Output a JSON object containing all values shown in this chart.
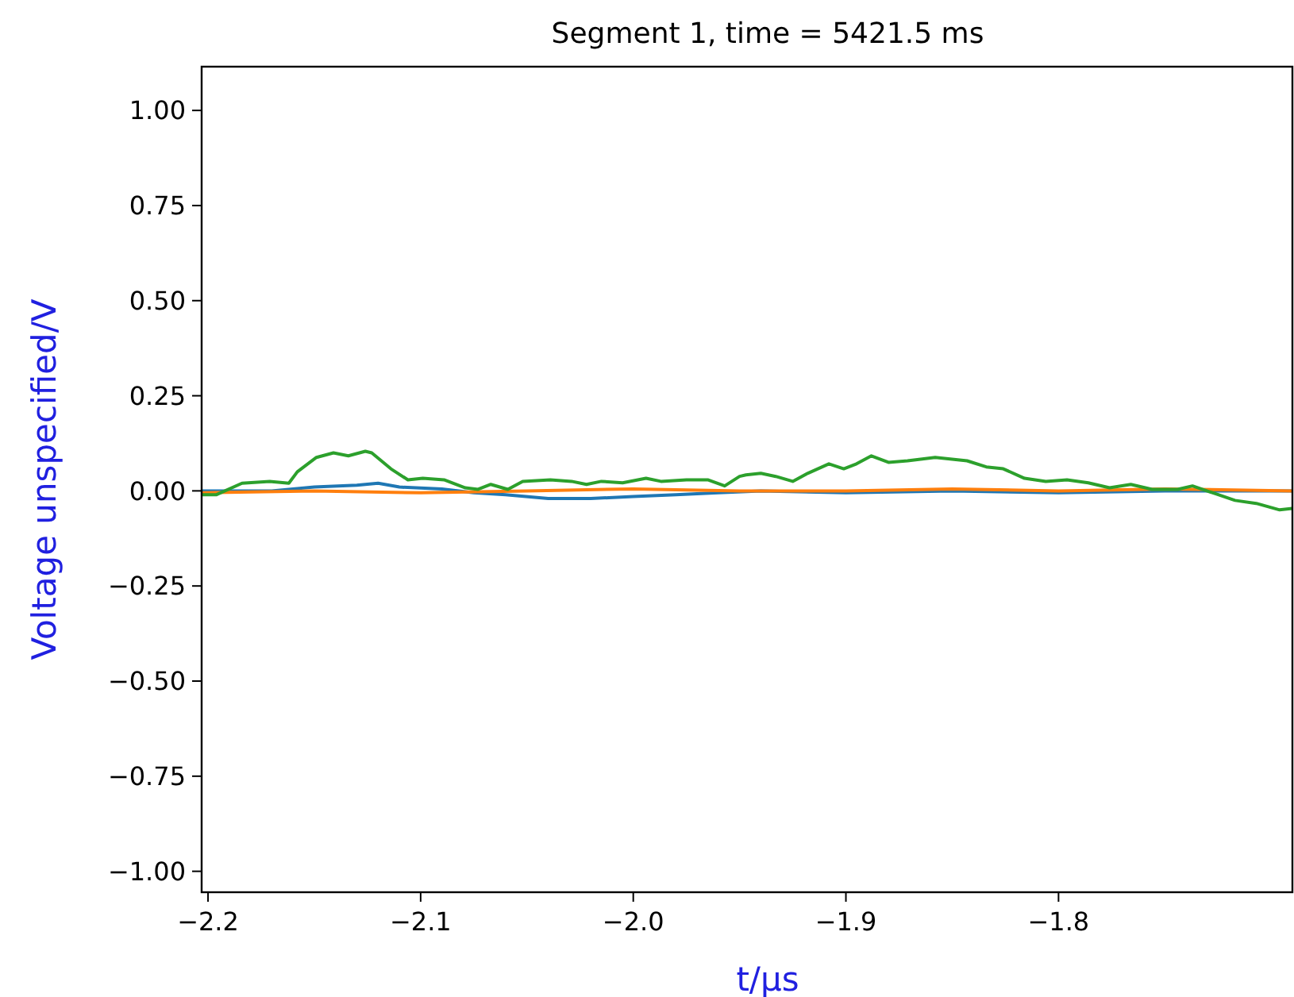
{
  "chart_data": {
    "type": "line",
    "title": "Segment 1, time = 5421.5 ms",
    "xlabel": "t/μs",
    "ylabel": "Voltage unspecified/V",
    "xlim": [
      -2.203,
      -1.69
    ],
    "ylim": [
      -1.055,
      1.115
    ],
    "xticks": [
      {
        "value": -2.2,
        "label": "−2.2"
      },
      {
        "value": -2.1,
        "label": "−2.1"
      },
      {
        "value": -2.0,
        "label": "−2.0"
      },
      {
        "value": -1.9,
        "label": "−1.9"
      },
      {
        "value": -1.8,
        "label": "−1.8"
      }
    ],
    "yticks": [
      {
        "value": -1,
        "label": "−1.00"
      },
      {
        "value": -0.75,
        "label": "−0.75"
      },
      {
        "value": -0.5,
        "label": "−0.50"
      },
      {
        "value": -0.25,
        "label": "−0.25"
      },
      {
        "value": 0,
        "label": "0.00"
      },
      {
        "value": 0.25,
        "label": "0.25"
      },
      {
        "value": 0.5,
        "label": "0.50"
      },
      {
        "value": 0.75,
        "label": "0.75"
      },
      {
        "value": 1,
        "label": "1.00"
      }
    ],
    "series": [
      {
        "color": "#1f77b4",
        "x": [
          -2.203,
          -2.17,
          -2.15,
          -2.13,
          -2.12,
          -2.11,
          -2.09,
          -2.075,
          -2.06,
          -2.04,
          -2.02,
          -2.0,
          -1.98,
          -1.96,
          -1.94,
          -1.9,
          -1.85,
          -1.8,
          -1.75,
          -1.69
        ],
        "values": [
          0,
          0,
          0.01,
          0.015,
          0.02,
          0.01,
          0.005,
          -0.005,
          -0.01,
          -0.02,
          -0.02,
          -0.015,
          -0.01,
          -0.005,
          0,
          -0.005,
          0,
          -0.005,
          0,
          0
        ]
      },
      {
        "color": "#ff7f0e",
        "x": [
          -2.203,
          -2.15,
          -2.1,
          -2.05,
          -2.0,
          -1.95,
          -1.9,
          -1.85,
          -1.8,
          -1.75,
          -1.69
        ],
        "values": [
          -0.005,
          0,
          -0.005,
          0,
          0.005,
          0,
          0,
          0.005,
          0,
          0.005,
          0
        ]
      },
      {
        "color": "#2ca02c",
        "x": [
          -2.203,
          -2.196,
          -2.184,
          -2.171,
          -2.162,
          -2.158,
          -2.149,
          -2.141,
          -2.134,
          -2.126,
          -2.123,
          -2.114,
          -2.106,
          -2.099,
          -2.089,
          -2.079,
          -2.073,
          -2.067,
          -2.059,
          -2.052,
          -2.039,
          -2.029,
          -2.022,
          -2.015,
          -2.005,
          -1.994,
          -1.987,
          -1.975,
          -1.965,
          -1.957,
          -1.95,
          -1.947,
          -1.94,
          -1.933,
          -1.925,
          -1.918,
          -1.908,
          -1.901,
          -1.895,
          -1.888,
          -1.88,
          -1.871,
          -1.858,
          -1.843,
          -1.834,
          -1.826,
          -1.816,
          -1.806,
          -1.796,
          -1.786,
          -1.776,
          -1.766,
          -1.756,
          -1.744,
          -1.737,
          -1.726,
          -1.717,
          -1.707,
          -1.696,
          -1.69
        ],
        "values": [
          -0.01,
          -0.01,
          0.02,
          0.025,
          0.02,
          0.05,
          0.088,
          0.1,
          0.092,
          0.104,
          0.1,
          0.058,
          0.029,
          0.033,
          0.029,
          0.008,
          0.004,
          0.017,
          0.004,
          0.025,
          0.029,
          0.025,
          0.017,
          0.025,
          0.021,
          0.033,
          0.025,
          0.029,
          0.029,
          0.013,
          0.038,
          0.042,
          0.046,
          0.038,
          0.025,
          0.046,
          0.071,
          0.058,
          0.071,
          0.092,
          0.075,
          0.079,
          0.088,
          0.079,
          0.063,
          0.058,
          0.033,
          0.025,
          0.029,
          0.021,
          0.008,
          0.017,
          0.004,
          0.004,
          0.013,
          -0.008,
          -0.025,
          -0.033,
          -0.05,
          -0.046
        ]
      }
    ]
  }
}
